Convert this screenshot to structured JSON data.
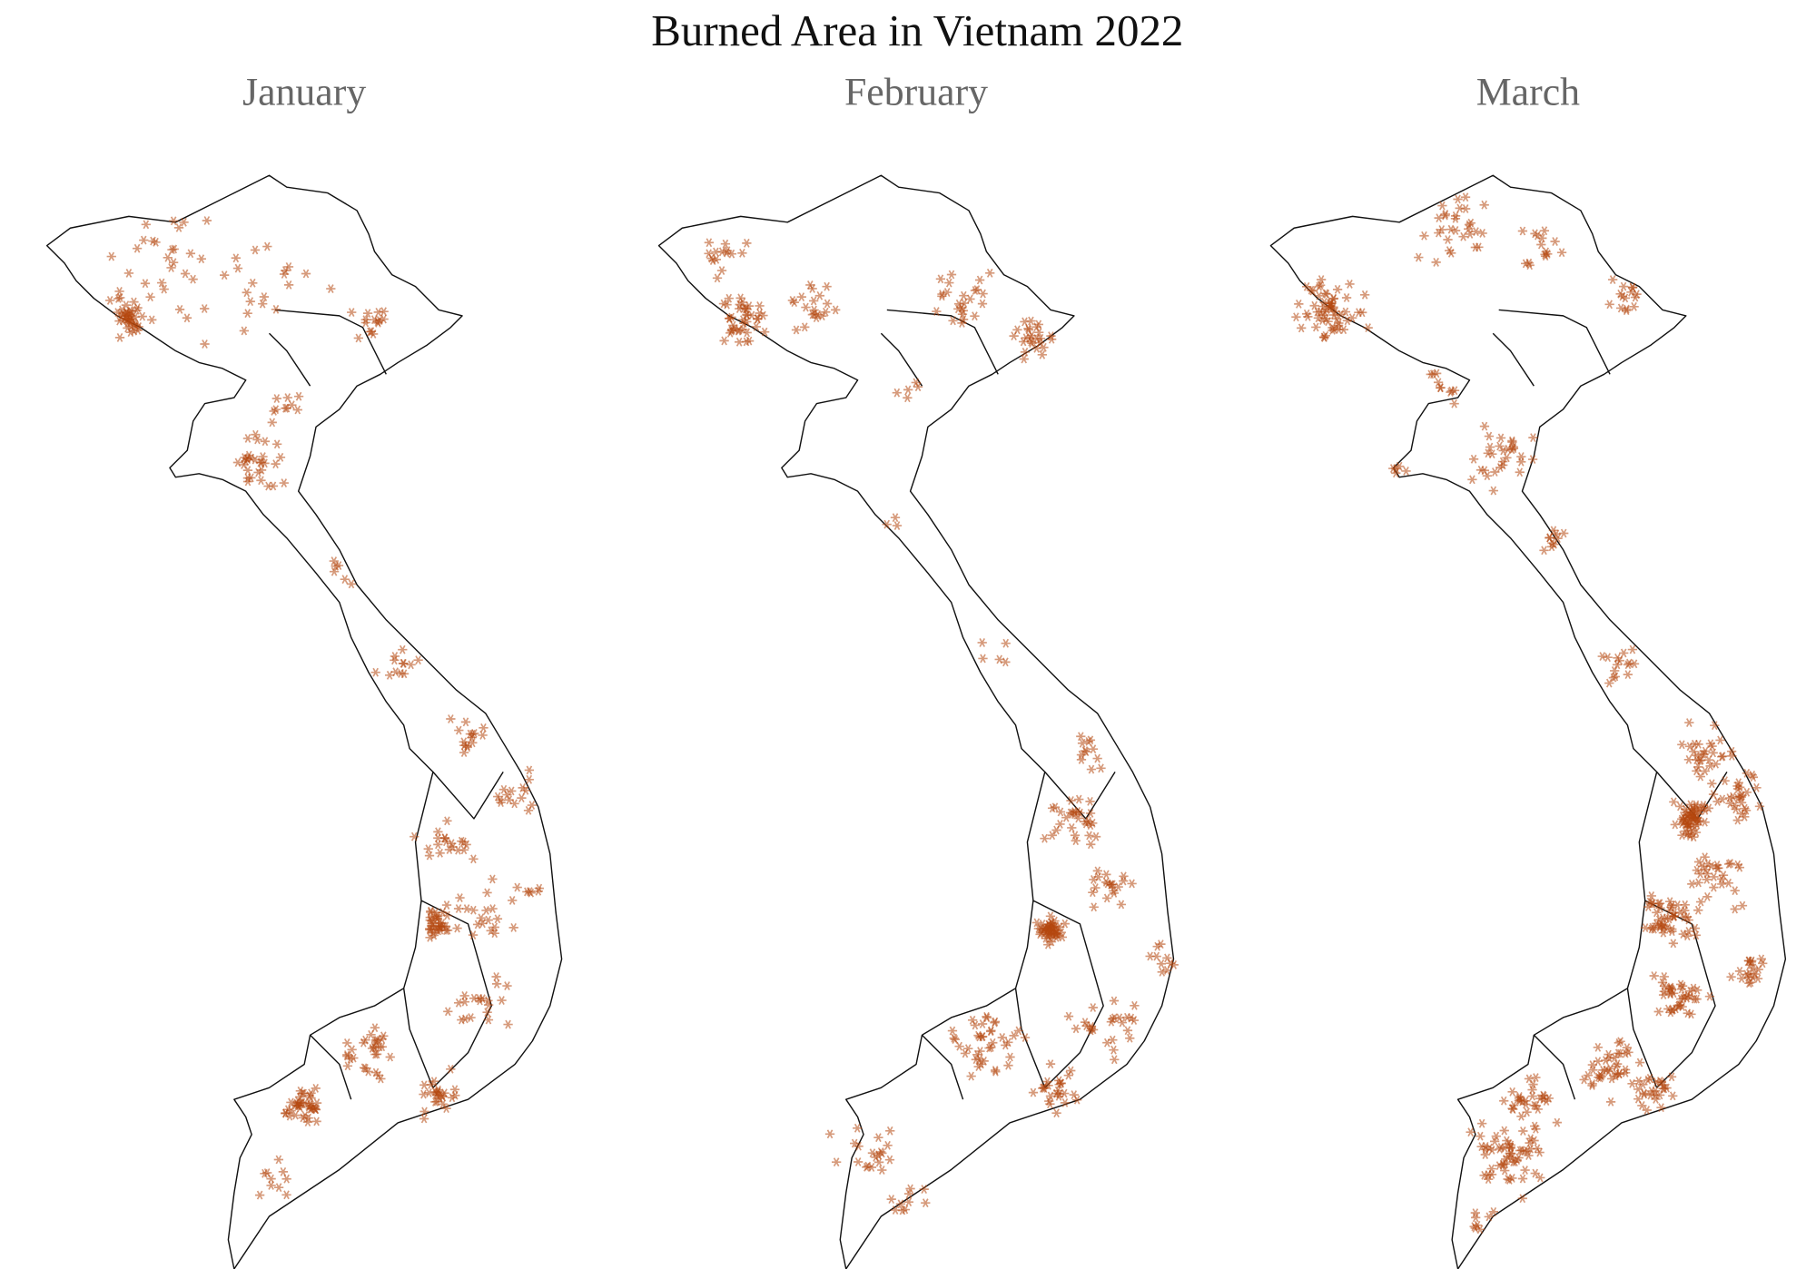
{
  "title": "Burned Area in Vietnam 2022",
  "panels": [
    {
      "label": "January"
    },
    {
      "label": "February"
    },
    {
      "label": "March"
    }
  ]
}
